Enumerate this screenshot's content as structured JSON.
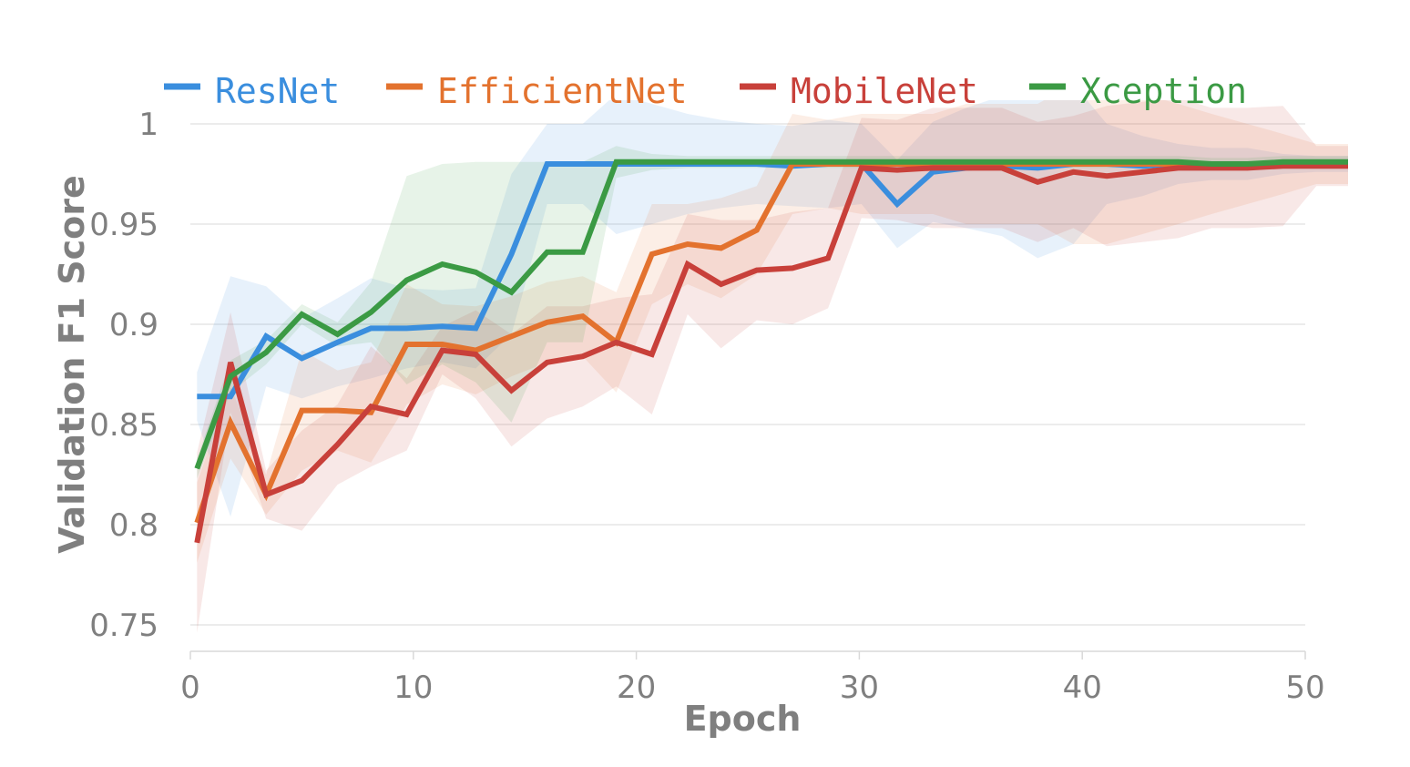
{
  "chart_data": {
    "type": "line",
    "title": "",
    "xlabel": "Epoch",
    "ylabel": "Validation F1 Score",
    "xlim": [
      0,
      52
    ],
    "ylim": [
      0.74,
      1.0
    ],
    "xticks": [
      0,
      10,
      20,
      30,
      40,
      50
    ],
    "xtick_labels": [
      "0",
      "10",
      "20",
      "30",
      "40",
      "50"
    ],
    "yticks": [
      0.75,
      0.8,
      0.85,
      0.9,
      0.95,
      1
    ],
    "ytick_labels": [
      "0.75",
      "0.8",
      "0.85",
      "0.9",
      "0.95",
      "1"
    ],
    "grid": "horizontal",
    "legend_position": "top",
    "x": [
      0.3,
      1.8,
      3.4,
      5.0,
      6.6,
      8.1,
      9.7,
      11.3,
      12.8,
      14.4,
      16.0,
      17.6,
      19.1,
      20.7,
      22.3,
      23.8,
      25.4,
      27.0,
      28.6,
      30.1,
      31.7,
      33.3,
      34.8,
      36.4,
      38.0,
      39.6,
      41.1,
      42.7,
      44.3,
      45.8,
      47.4,
      49.0,
      50.5,
      52.0
    ],
    "series": [
      {
        "name": "ResNet",
        "color": "#3a8ede",
        "values": [
          0.864,
          0.864,
          0.894,
          0.883,
          0.891,
          0.898,
          0.898,
          0.899,
          0.898,
          0.935,
          0.98,
          0.98,
          0.98,
          0.98,
          0.98,
          0.98,
          0.98,
          0.979,
          0.98,
          0.98,
          0.96,
          0.976,
          0.978,
          0.979,
          0.978,
          0.98,
          0.98,
          0.979,
          0.98,
          0.98,
          0.98,
          0.98,
          0.98,
          0.98
        ],
        "band": [
          0.012,
          0.06,
          0.025,
          0.02,
          0.022,
          0.025,
          0.02,
          0.018,
          0.02,
          0.04,
          0.02,
          0.02,
          0.035,
          0.03,
          0.025,
          0.022,
          0.02,
          0.02,
          0.022,
          0.02,
          0.022,
          0.025,
          0.03,
          0.035,
          0.045,
          0.04,
          0.02,
          0.015,
          0.01,
          0.008,
          0.008,
          0.005,
          0.004,
          0.004
        ]
      },
      {
        "name": "EfficientNet",
        "color": "#e3722e",
        "values": [
          0.801,
          0.851,
          0.815,
          0.857,
          0.857,
          0.856,
          0.89,
          0.89,
          0.887,
          0.894,
          0.901,
          0.904,
          0.891,
          0.935,
          0.94,
          0.938,
          0.947,
          0.98,
          0.98,
          0.98,
          0.98,
          0.98,
          0.98,
          0.98,
          0.98,
          0.98,
          0.98,
          0.98,
          0.98,
          0.98,
          0.98,
          0.98,
          0.98,
          0.98
        ],
        "band": [
          0.02,
          0.018,
          0.01,
          0.03,
          0.02,
          0.025,
          0.03,
          0.02,
          0.022,
          0.02,
          0.02,
          0.02,
          0.025,
          0.025,
          0.02,
          0.025,
          0.022,
          0.025,
          0.022,
          0.025,
          0.025,
          0.025,
          0.03,
          0.03,
          0.03,
          0.04,
          0.04,
          0.035,
          0.03,
          0.025,
          0.02,
          0.015,
          0.01,
          0.01
        ]
      },
      {
        "name": "MobileNet",
        "color": "#c8403a",
        "values": [
          0.791,
          0.881,
          0.815,
          0.822,
          0.84,
          0.859,
          0.855,
          0.887,
          0.885,
          0.867,
          0.881,
          0.884,
          0.891,
          0.885,
          0.93,
          0.92,
          0.927,
          0.928,
          0.933,
          0.978,
          0.977,
          0.978,
          0.978,
          0.978,
          0.971,
          0.976,
          0.974,
          0.976,
          0.978,
          0.978,
          0.978,
          0.979,
          0.979,
          0.979
        ],
        "band": [
          0.045,
          0.025,
          0.012,
          0.025,
          0.02,
          0.03,
          0.018,
          0.012,
          0.022,
          0.028,
          0.028,
          0.025,
          0.022,
          0.03,
          0.025,
          0.032,
          0.025,
          0.028,
          0.025,
          0.025,
          0.025,
          0.03,
          0.03,
          0.03,
          0.03,
          0.028,
          0.035,
          0.035,
          0.035,
          0.03,
          0.03,
          0.03,
          0.01,
          0.01
        ]
      },
      {
        "name": "Xception",
        "color": "#3b9a44",
        "values": [
          0.828,
          0.874,
          0.886,
          0.905,
          0.895,
          0.906,
          0.922,
          0.93,
          0.926,
          0.916,
          0.936,
          0.936,
          0.981,
          0.981,
          0.981,
          0.981,
          0.981,
          0.981,
          0.981,
          0.981,
          0.981,
          0.981,
          0.981,
          0.981,
          0.981,
          0.981,
          0.981,
          0.981,
          0.981,
          0.98,
          0.98,
          0.981,
          0.981,
          0.981
        ],
        "band": [
          0.005,
          0.008,
          0.006,
          0.005,
          0.006,
          0.015,
          0.052,
          0.05,
          0.055,
          0.065,
          0.045,
          0.045,
          0.008,
          0.004,
          0.003,
          0.003,
          0.003,
          0.003,
          0.003,
          0.003,
          0.003,
          0.003,
          0.003,
          0.003,
          0.003,
          0.003,
          0.003,
          0.003,
          0.003,
          0.003,
          0.003,
          0.003,
          0.003,
          0.003
        ]
      }
    ]
  }
}
